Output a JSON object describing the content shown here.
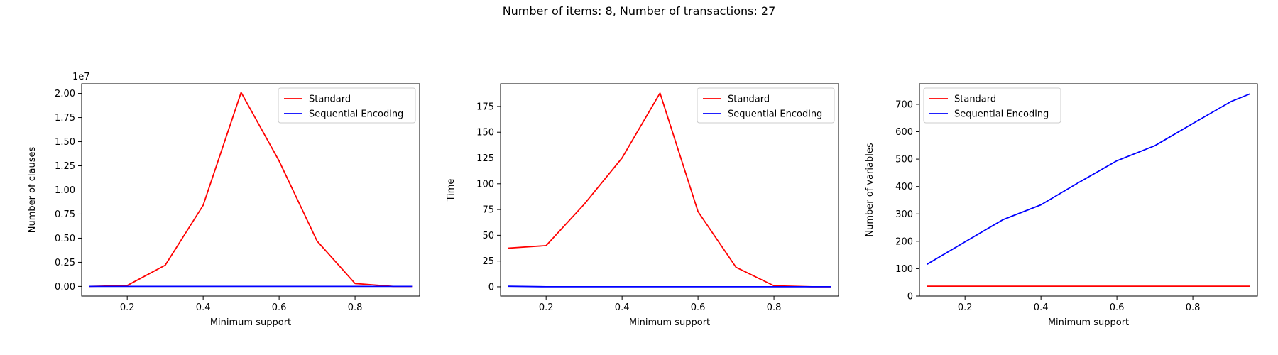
{
  "figure": {
    "suptitle": "Number of items: 8, Number of transactions: 27"
  },
  "colors": {
    "standard": "#ff0000",
    "sequential": "#0000ff"
  },
  "chart_data": [
    {
      "type": "line",
      "xlabel": "Minimum support",
      "ylabel": "Number of clauses",
      "offset_text": "1e7",
      "xlim": [
        0.08,
        0.97
      ],
      "ylim": [
        -1000000,
        21000000
      ],
      "xticks": [
        0.2,
        0.4,
        0.6,
        0.8
      ],
      "xtick_labels": [
        "0.2",
        "0.4",
        "0.6",
        "0.8"
      ],
      "yticks": [
        0,
        2500000,
        5000000,
        7500000,
        10000000,
        12500000,
        15000000,
        17500000,
        20000000
      ],
      "ytick_labels": [
        "0.00",
        "0.25",
        "0.50",
        "0.75",
        "1.00",
        "1.25",
        "1.50",
        "1.75",
        "2.00"
      ],
      "legend_loc": "upper right",
      "x": [
        0.1,
        0.2,
        0.3,
        0.4,
        0.5,
        0.6,
        0.7,
        0.8,
        0.9,
        0.95
      ],
      "series": [
        {
          "name": "Standard",
          "color": "#ff0000",
          "values": [
            0,
            100000,
            2200000,
            8400000,
            20100000,
            13000000,
            4700000,
            300000,
            0,
            0
          ]
        },
        {
          "name": "Sequential Encoding",
          "color": "#0000ff",
          "values": [
            0,
            0,
            0,
            0,
            0,
            0,
            0,
            0,
            0,
            0
          ]
        }
      ]
    },
    {
      "type": "line",
      "xlabel": "Minimum support",
      "ylabel": "Time",
      "xlim": [
        0.08,
        0.97
      ],
      "ylim": [
        -9,
        197
      ],
      "xticks": [
        0.2,
        0.4,
        0.6,
        0.8
      ],
      "xtick_labels": [
        "0.2",
        "0.4",
        "0.6",
        "0.8"
      ],
      "yticks": [
        0,
        25,
        50,
        75,
        100,
        125,
        150,
        175
      ],
      "ytick_labels": [
        "0",
        "25",
        "50",
        "75",
        "100",
        "125",
        "150",
        "175"
      ],
      "legend_loc": "upper right",
      "x": [
        0.1,
        0.2,
        0.3,
        0.4,
        0.5,
        0.6,
        0.7,
        0.8,
        0.9,
        0.95
      ],
      "series": [
        {
          "name": "Standard",
          "color": "#ff0000",
          "values": [
            37.5,
            40,
            80,
            125,
            188,
            73,
            19,
            1,
            0,
            0
          ]
        },
        {
          "name": "Sequential Encoding",
          "color": "#0000ff",
          "values": [
            0.5,
            0,
            0,
            0,
            0,
            0,
            0,
            0,
            0,
            0
          ]
        }
      ]
    },
    {
      "type": "line",
      "xlabel": "Minimum support",
      "ylabel": "Number of variables",
      "xlim": [
        0.08,
        0.97
      ],
      "ylim": [
        0,
        775
      ],
      "xticks": [
        0.2,
        0.4,
        0.6,
        0.8
      ],
      "xtick_labels": [
        "0.2",
        "0.4",
        "0.6",
        "0.8"
      ],
      "yticks": [
        0,
        100,
        200,
        300,
        400,
        500,
        600,
        700
      ],
      "ytick_labels": [
        "0",
        "100",
        "200",
        "300",
        "400",
        "500",
        "600",
        "700"
      ],
      "legend_loc": "upper left",
      "x": [
        0.1,
        0.2,
        0.3,
        0.4,
        0.5,
        0.6,
        0.7,
        0.8,
        0.9,
        0.95
      ],
      "series": [
        {
          "name": "Standard",
          "color": "#ff0000",
          "values": [
            36,
            36,
            36,
            36,
            36,
            36,
            36,
            36,
            36,
            36
          ]
        },
        {
          "name": "Sequential Encoding",
          "color": "#0000ff",
          "values": [
            116,
            198,
            279,
            333,
            415,
            494,
            549,
            630,
            710,
            738
          ]
        }
      ]
    }
  ]
}
